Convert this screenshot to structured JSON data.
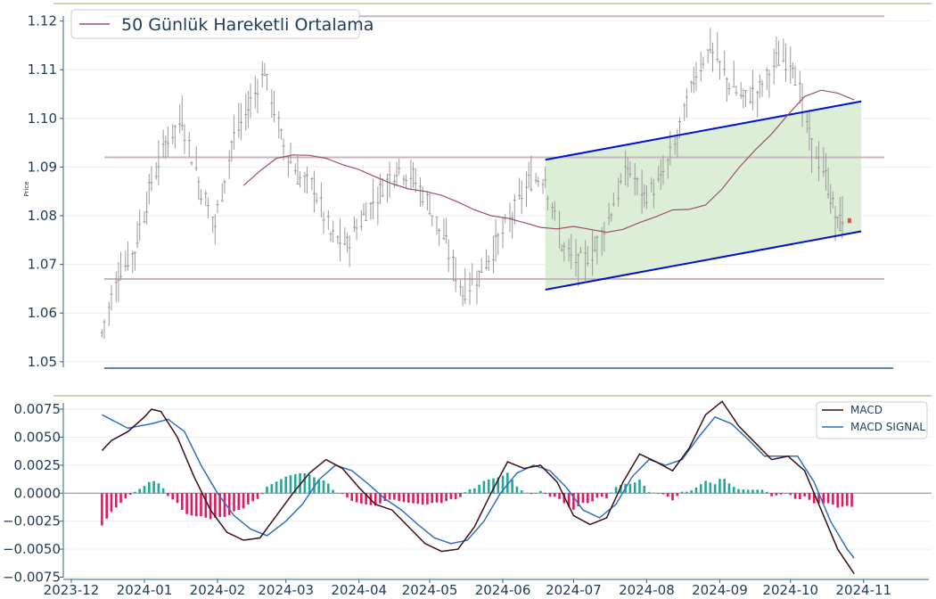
{
  "chart_data": [
    {
      "type": "candlestick",
      "ylabel": "Price",
      "ylim": [
        1.0485,
        1.1225
      ],
      "y_ticks": [
        "1.05",
        "1.06",
        "1.07",
        "1.08",
        "1.09",
        "1.10",
        "1.11",
        "1.12"
      ],
      "legend": {
        "label": "50 Günlük Hareketli Ortalama",
        "placement": "top-left"
      },
      "horizontal_levels": [
        1.121,
        1.092,
        1.067
      ],
      "channel": {
        "upper": [
          [
            "2024-06-19",
            1.0915
          ],
          [
            "2024-10-31",
            1.1035
          ]
        ],
        "lower": [
          [
            "2024-06-19",
            1.0648
          ],
          [
            "2024-10-31",
            1.0768
          ]
        ]
      },
      "colors": {
        "candle": "#9a9a9a",
        "ma": "#9b4e6e",
        "level": "#c9b6bd",
        "channel": "#0010d0",
        "channel_fill": "#dcefd6",
        "last_candle": "#e05050",
        "axis": "#2f5f8f"
      },
      "ma_series": [
        [
          "2024-02-12",
          1.0862
        ],
        [
          "2024-02-19",
          1.0892
        ],
        [
          "2024-02-26",
          1.0918
        ],
        [
          "2024-03-04",
          1.0925
        ],
        [
          "2024-03-11",
          1.0924
        ],
        [
          "2024-03-18",
          1.0918
        ],
        [
          "2024-03-25",
          1.0905
        ],
        [
          "2024-04-01",
          1.0895
        ],
        [
          "2024-04-08",
          1.088
        ],
        [
          "2024-04-15",
          1.0866
        ],
        [
          "2024-04-22",
          1.0855
        ],
        [
          "2024-04-29",
          1.085
        ],
        [
          "2024-05-06",
          1.0842
        ],
        [
          "2024-05-13",
          1.0828
        ],
        [
          "2024-05-20",
          1.0812
        ],
        [
          "2024-05-27",
          1.08
        ],
        [
          "2024-06-03",
          1.0795
        ],
        [
          "2024-06-10",
          1.0786
        ],
        [
          "2024-06-17",
          1.0776
        ],
        [
          "2024-06-24",
          1.0773
        ],
        [
          "2024-07-01",
          1.0778
        ],
        [
          "2024-07-08",
          1.0772
        ],
        [
          "2024-07-15",
          1.0766
        ],
        [
          "2024-07-22",
          1.0772
        ],
        [
          "2024-07-29",
          1.0786
        ],
        [
          "2024-08-05",
          1.0798
        ],
        [
          "2024-08-12",
          1.0812
        ],
        [
          "2024-08-19",
          1.0813
        ],
        [
          "2024-08-26",
          1.0822
        ],
        [
          "2024-09-02",
          1.0855
        ],
        [
          "2024-09-09",
          1.0898
        ],
        [
          "2024-09-16",
          1.0935
        ],
        [
          "2024-09-23",
          1.0968
        ],
        [
          "2024-09-30",
          1.1008
        ],
        [
          "2024-10-07",
          1.1045
        ],
        [
          "2024-10-14",
          1.1058
        ],
        [
          "2024-10-21",
          1.1052
        ],
        [
          "2024-10-28",
          1.1038
        ]
      ],
      "price_path": [
        [
          "2023-12-14",
          1.056
        ],
        [
          "2023-12-21",
          1.068
        ],
        [
          "2023-12-28",
          1.073
        ],
        [
          "2024-01-03",
          1.085
        ],
        [
          "2024-01-10",
          1.095
        ],
        [
          "2024-01-17",
          1.1
        ],
        [
          "2024-01-24",
          1.087
        ],
        [
          "2024-01-31",
          1.078
        ],
        [
          "2024-02-07",
          1.095
        ],
        [
          "2024-02-14",
          1.102
        ],
        [
          "2024-02-21",
          1.11
        ],
        [
          "2024-02-28",
          1.096
        ],
        [
          "2024-03-06",
          1.088
        ],
        [
          "2024-03-13",
          1.086
        ],
        [
          "2024-03-20",
          1.076
        ],
        [
          "2024-03-27",
          1.074
        ],
        [
          "2024-04-03",
          1.08
        ],
        [
          "2024-04-10",
          1.085
        ],
        [
          "2024-04-17",
          1.09
        ],
        [
          "2024-04-24",
          1.088
        ],
        [
          "2024-05-01",
          1.082
        ],
        [
          "2024-05-08",
          1.074
        ],
        [
          "2024-05-15",
          1.064
        ],
        [
          "2024-05-22",
          1.068
        ],
        [
          "2024-05-29",
          1.074
        ],
        [
          "2024-06-05",
          1.08
        ],
        [
          "2024-06-12",
          1.087
        ],
        [
          "2024-06-19",
          1.088
        ],
        [
          "2024-06-26",
          1.074
        ],
        [
          "2024-07-03",
          1.07
        ],
        [
          "2024-07-10",
          1.073
        ],
        [
          "2024-07-17",
          1.081
        ],
        [
          "2024-07-24",
          1.09
        ],
        [
          "2024-07-31",
          1.084
        ],
        [
          "2024-08-07",
          1.087
        ],
        [
          "2024-08-14",
          1.096
        ],
        [
          "2024-08-21",
          1.108
        ],
        [
          "2024-08-28",
          1.115
        ],
        [
          "2024-09-04",
          1.108
        ],
        [
          "2024-09-11",
          1.104
        ],
        [
          "2024-09-18",
          1.106
        ],
        [
          "2024-09-25",
          1.112
        ],
        [
          "2024-10-02",
          1.112
        ],
        [
          "2024-10-09",
          1.096
        ],
        [
          "2024-10-16",
          1.088
        ],
        [
          "2024-10-21",
          1.078
        ],
        [
          "2024-10-24",
          1.08
        ]
      ],
      "last_candle": {
        "date": "2024-10-26",
        "open": 1.0795,
        "close": 1.0785
      }
    },
    {
      "type": "line+bar",
      "ylim": [
        -0.0077,
        0.0083
      ],
      "y_ticks": [
        "0.0075",
        "0.0050",
        "0.0025",
        "0.0000",
        "−0.0025",
        "−0.0050",
        "−0.0075"
      ],
      "x_ticks": [
        "2023-12",
        "2024-01",
        "2024-02",
        "2024-03",
        "2024-04",
        "2024-05",
        "2024-06",
        "2024-07",
        "2024-08",
        "2024-09",
        "2024-10",
        "2024-11"
      ],
      "legend": {
        "placement": "top-right"
      },
      "colors": {
        "macd": "#3b0f14",
        "signal": "#2d6fc4",
        "hist_pos": "#26a69a",
        "hist_neg": "#e8175d"
      },
      "series": [
        {
          "name": "MACD",
          "points": [
            [
              "2023-12-14",
              0.0038
            ],
            [
              "2023-12-18",
              0.0047
            ],
            [
              "2023-12-25",
              0.0055
            ],
            [
              "2024-01-01",
              0.0068
            ],
            [
              "2024-01-04",
              0.0075
            ],
            [
              "2024-01-08",
              0.0073
            ],
            [
              "2024-01-15",
              0.005
            ],
            [
              "2024-01-22",
              0.0015
            ],
            [
              "2024-01-29",
              -0.0015
            ],
            [
              "2024-02-05",
              -0.0035
            ],
            [
              "2024-02-12",
              -0.0042
            ],
            [
              "2024-02-19",
              -0.004
            ],
            [
              "2024-02-26",
              -0.002
            ],
            [
              "2024-03-04",
              0.0
            ],
            [
              "2024-03-11",
              0.0018
            ],
            [
              "2024-03-18",
              0.003
            ],
            [
              "2024-03-25",
              0.0022
            ],
            [
              "2024-04-01",
              0.0005
            ],
            [
              "2024-04-08",
              -0.001
            ],
            [
              "2024-04-15",
              -0.0015
            ],
            [
              "2024-04-22",
              -0.003
            ],
            [
              "2024-04-29",
              -0.0045
            ],
            [
              "2024-05-06",
              -0.0052
            ],
            [
              "2024-05-13",
              -0.005
            ],
            [
              "2024-05-20",
              -0.003
            ],
            [
              "2024-05-27",
              0.0
            ],
            [
              "2024-06-03",
              0.0028
            ],
            [
              "2024-06-10",
              0.0022
            ],
            [
              "2024-06-17",
              0.0025
            ],
            [
              "2024-06-24",
              0.001
            ],
            [
              "2024-07-01",
              -0.002
            ],
            [
              "2024-07-08",
              -0.0028
            ],
            [
              "2024-07-15",
              -0.0022
            ],
            [
              "2024-07-22",
              0.001
            ],
            [
              "2024-07-29",
              0.0035
            ],
            [
              "2024-08-05",
              0.0028
            ],
            [
              "2024-08-12",
              0.002
            ],
            [
              "2024-08-19",
              0.004
            ],
            [
              "2024-08-26",
              0.007
            ],
            [
              "2024-09-02",
              0.0082
            ],
            [
              "2024-09-09",
              0.006
            ],
            [
              "2024-09-16",
              0.0045
            ],
            [
              "2024-09-23",
              0.003
            ],
            [
              "2024-09-30",
              0.0033
            ],
            [
              "2024-10-07",
              0.002
            ],
            [
              "2024-10-14",
              -0.0015
            ],
            [
              "2024-10-21",
              -0.005
            ],
            [
              "2024-10-28",
              -0.0072
            ]
          ]
        },
        {
          "name": "MACD SIGNAL",
          "points": [
            [
              "2023-12-14",
              0.007
            ],
            [
              "2023-12-25",
              0.0058
            ],
            [
              "2024-01-04",
              0.0062
            ],
            [
              "2024-01-11",
              0.0066
            ],
            [
              "2024-01-18",
              0.0055
            ],
            [
              "2024-01-25",
              0.0025
            ],
            [
              "2024-02-01",
              0.0
            ],
            [
              "2024-02-08",
              -0.002
            ],
            [
              "2024-02-15",
              -0.0032
            ],
            [
              "2024-02-22",
              -0.0038
            ],
            [
              "2024-03-01",
              -0.0025
            ],
            [
              "2024-03-08",
              -0.001
            ],
            [
              "2024-03-15",
              0.0012
            ],
            [
              "2024-03-22",
              0.0025
            ],
            [
              "2024-03-29",
              0.002
            ],
            [
              "2024-04-05",
              0.0008
            ],
            [
              "2024-04-12",
              -0.0005
            ],
            [
              "2024-04-19",
              -0.0015
            ],
            [
              "2024-04-26",
              -0.0028
            ],
            [
              "2024-05-03",
              -0.004
            ],
            [
              "2024-05-10",
              -0.0045
            ],
            [
              "2024-05-17",
              -0.0042
            ],
            [
              "2024-05-24",
              -0.0025
            ],
            [
              "2024-05-31",
              0.0
            ],
            [
              "2024-06-07",
              0.0018
            ],
            [
              "2024-06-14",
              0.0025
            ],
            [
              "2024-06-21",
              0.002
            ],
            [
              "2024-06-28",
              0.0005
            ],
            [
              "2024-07-05",
              -0.0015
            ],
            [
              "2024-07-12",
              -0.0022
            ],
            [
              "2024-07-19",
              -0.001
            ],
            [
              "2024-07-26",
              0.0015
            ],
            [
              "2024-08-02",
              0.003
            ],
            [
              "2024-08-09",
              0.0025
            ],
            [
              "2024-08-16",
              0.003
            ],
            [
              "2024-08-23",
              0.005
            ],
            [
              "2024-08-30",
              0.0068
            ],
            [
              "2024-09-06",
              0.0062
            ],
            [
              "2024-09-13",
              0.0048
            ],
            [
              "2024-09-20",
              0.0033
            ],
            [
              "2024-09-27",
              0.0033
            ],
            [
              "2024-10-04",
              0.0033
            ],
            [
              "2024-10-11",
              0.001
            ],
            [
              "2024-10-18",
              -0.0025
            ],
            [
              "2024-10-25",
              -0.005
            ],
            [
              "2024-10-28",
              -0.0058
            ]
          ]
        }
      ]
    }
  ]
}
